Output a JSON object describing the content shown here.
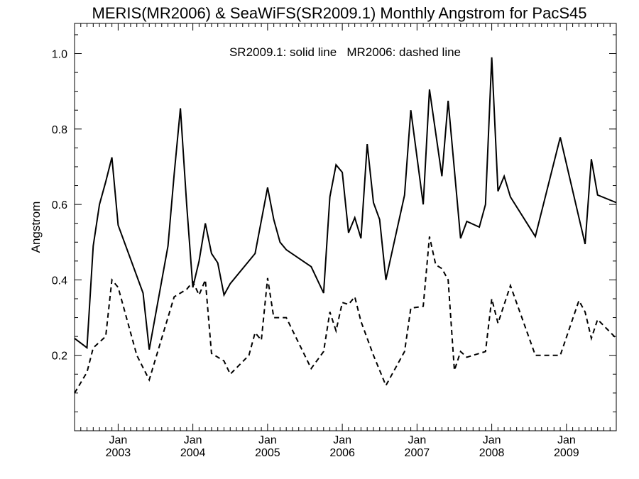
{
  "chart_data": {
    "type": "line",
    "title": "MERIS(MR2006) & SeaWiFS(SR2009.1) Monthly Angstrom for PacS45",
    "annotation": "SR2009.1: solid line   MR2006: dashed line",
    "ylabel": "Angstrom",
    "xlabel": "",
    "ylim": [
      0.0,
      1.08
    ],
    "xlim": [
      "2002-06",
      "2009-09"
    ],
    "yticks": [
      "0.2",
      "0.4",
      "0.6",
      "0.8",
      "1.0"
    ],
    "xticks": [
      {
        "month": "Jan",
        "year": "2003"
      },
      {
        "month": "Jan",
        "year": "2004"
      },
      {
        "month": "Jan",
        "year": "2005"
      },
      {
        "month": "Jan",
        "year": "2006"
      },
      {
        "month": "Jan",
        "year": "2007"
      },
      {
        "month": "Jan",
        "year": "2008"
      },
      {
        "month": "Jan",
        "year": "2009"
      }
    ],
    "series": [
      {
        "name": "SR2009.1",
        "style": "solid",
        "points": [
          [
            "2002-06",
            0.245
          ],
          [
            "2002-08",
            0.22
          ],
          [
            "2002-09",
            0.49
          ],
          [
            "2002-10",
            0.6
          ],
          [
            "2002-11",
            0.66
          ],
          [
            "2002-12",
            0.725
          ],
          [
            "2003-01",
            0.545
          ],
          [
            "2003-05",
            0.365
          ],
          [
            "2003-06",
            0.215
          ],
          [
            "2003-09",
            0.49
          ],
          [
            "2003-10",
            0.68
          ],
          [
            "2003-11",
            0.855
          ],
          [
            "2003-12",
            0.6
          ],
          [
            "2004-01",
            0.38
          ],
          [
            "2004-02",
            0.45
          ],
          [
            "2004-03",
            0.55
          ],
          [
            "2004-04",
            0.47
          ],
          [
            "2004-05",
            0.445
          ],
          [
            "2004-06",
            0.36
          ],
          [
            "2004-07",
            0.39
          ],
          [
            "2004-11",
            0.47
          ],
          [
            "2005-01",
            0.645
          ],
          [
            "2005-02",
            0.56
          ],
          [
            "2005-03",
            0.5
          ],
          [
            "2005-04",
            0.48
          ],
          [
            "2005-08",
            0.435
          ],
          [
            "2005-10",
            0.365
          ],
          [
            "2005-11",
            0.62
          ],
          [
            "2005-12",
            0.705
          ],
          [
            "2006-01",
            0.685
          ],
          [
            "2006-02",
            0.525
          ],
          [
            "2006-03",
            0.565
          ],
          [
            "2006-04",
            0.51
          ],
          [
            "2006-05",
            0.76
          ],
          [
            "2006-06",
            0.605
          ],
          [
            "2006-07",
            0.56
          ],
          [
            "2006-08",
            0.4
          ],
          [
            "2006-11",
            0.625
          ],
          [
            "2006-12",
            0.85
          ],
          [
            "2007-02",
            0.6
          ],
          [
            "2007-03",
            0.905
          ],
          [
            "2007-05",
            0.675
          ],
          [
            "2007-06",
            0.875
          ],
          [
            "2007-08",
            0.51
          ],
          [
            "2007-09",
            0.555
          ],
          [
            "2007-11",
            0.54
          ],
          [
            "2007-12",
            0.6
          ],
          [
            "2008-01",
            0.99
          ],
          [
            "2008-02",
            0.635
          ],
          [
            "2008-03",
            0.675
          ],
          [
            "2008-04",
            0.62
          ],
          [
            "2008-08",
            0.515
          ],
          [
            "2008-12",
            0.778
          ],
          [
            "2009-03",
            0.565
          ],
          [
            "2009-04",
            0.495
          ],
          [
            "2009-05",
            0.72
          ],
          [
            "2009-06",
            0.625
          ],
          [
            "2009-09",
            0.605
          ]
        ]
      },
      {
        "name": "MR2006",
        "style": "dashed",
        "points": [
          [
            "2002-06",
            0.1
          ],
          [
            "2002-08",
            0.155
          ],
          [
            "2002-09",
            0.22
          ],
          [
            "2002-11",
            0.25
          ],
          [
            "2002-12",
            0.4
          ],
          [
            "2003-01",
            0.38
          ],
          [
            "2003-04",
            0.2
          ],
          [
            "2003-06",
            0.135
          ],
          [
            "2003-10",
            0.355
          ],
          [
            "2003-12",
            0.375
          ],
          [
            "2004-01",
            0.395
          ],
          [
            "2004-02",
            0.36
          ],
          [
            "2004-03",
            0.4
          ],
          [
            "2004-04",
            0.205
          ],
          [
            "2004-06",
            0.185
          ],
          [
            "2004-07",
            0.15
          ],
          [
            "2004-10",
            0.2
          ],
          [
            "2004-11",
            0.26
          ],
          [
            "2004-12",
            0.24
          ],
          [
            "2005-01",
            0.405
          ],
          [
            "2005-02",
            0.3
          ],
          [
            "2005-04",
            0.3
          ],
          [
            "2005-08",
            0.165
          ],
          [
            "2005-10",
            0.21
          ],
          [
            "2005-11",
            0.315
          ],
          [
            "2005-12",
            0.265
          ],
          [
            "2006-01",
            0.34
          ],
          [
            "2006-02",
            0.335
          ],
          [
            "2006-03",
            0.355
          ],
          [
            "2006-04",
            0.29
          ],
          [
            "2006-06",
            0.2
          ],
          [
            "2006-08",
            0.12
          ],
          [
            "2006-11",
            0.21
          ],
          [
            "2006-12",
            0.325
          ],
          [
            "2007-02",
            0.33
          ],
          [
            "2007-03",
            0.515
          ],
          [
            "2007-04",
            0.44
          ],
          [
            "2007-05",
            0.43
          ],
          [
            "2007-06",
            0.4
          ],
          [
            "2007-07",
            0.16
          ],
          [
            "2007-08",
            0.21
          ],
          [
            "2007-09",
            0.195
          ],
          [
            "2007-12",
            0.21
          ],
          [
            "2008-01",
            0.35
          ],
          [
            "2008-02",
            0.285
          ],
          [
            "2008-04",
            0.385
          ],
          [
            "2008-08",
            0.2
          ],
          [
            "2008-12",
            0.2
          ],
          [
            "2009-03",
            0.345
          ],
          [
            "2009-04",
            0.315
          ],
          [
            "2009-05",
            0.245
          ],
          [
            "2009-06",
            0.295
          ],
          [
            "2009-09",
            0.245
          ]
        ]
      }
    ],
    "grid": false,
    "legend": "none"
  }
}
